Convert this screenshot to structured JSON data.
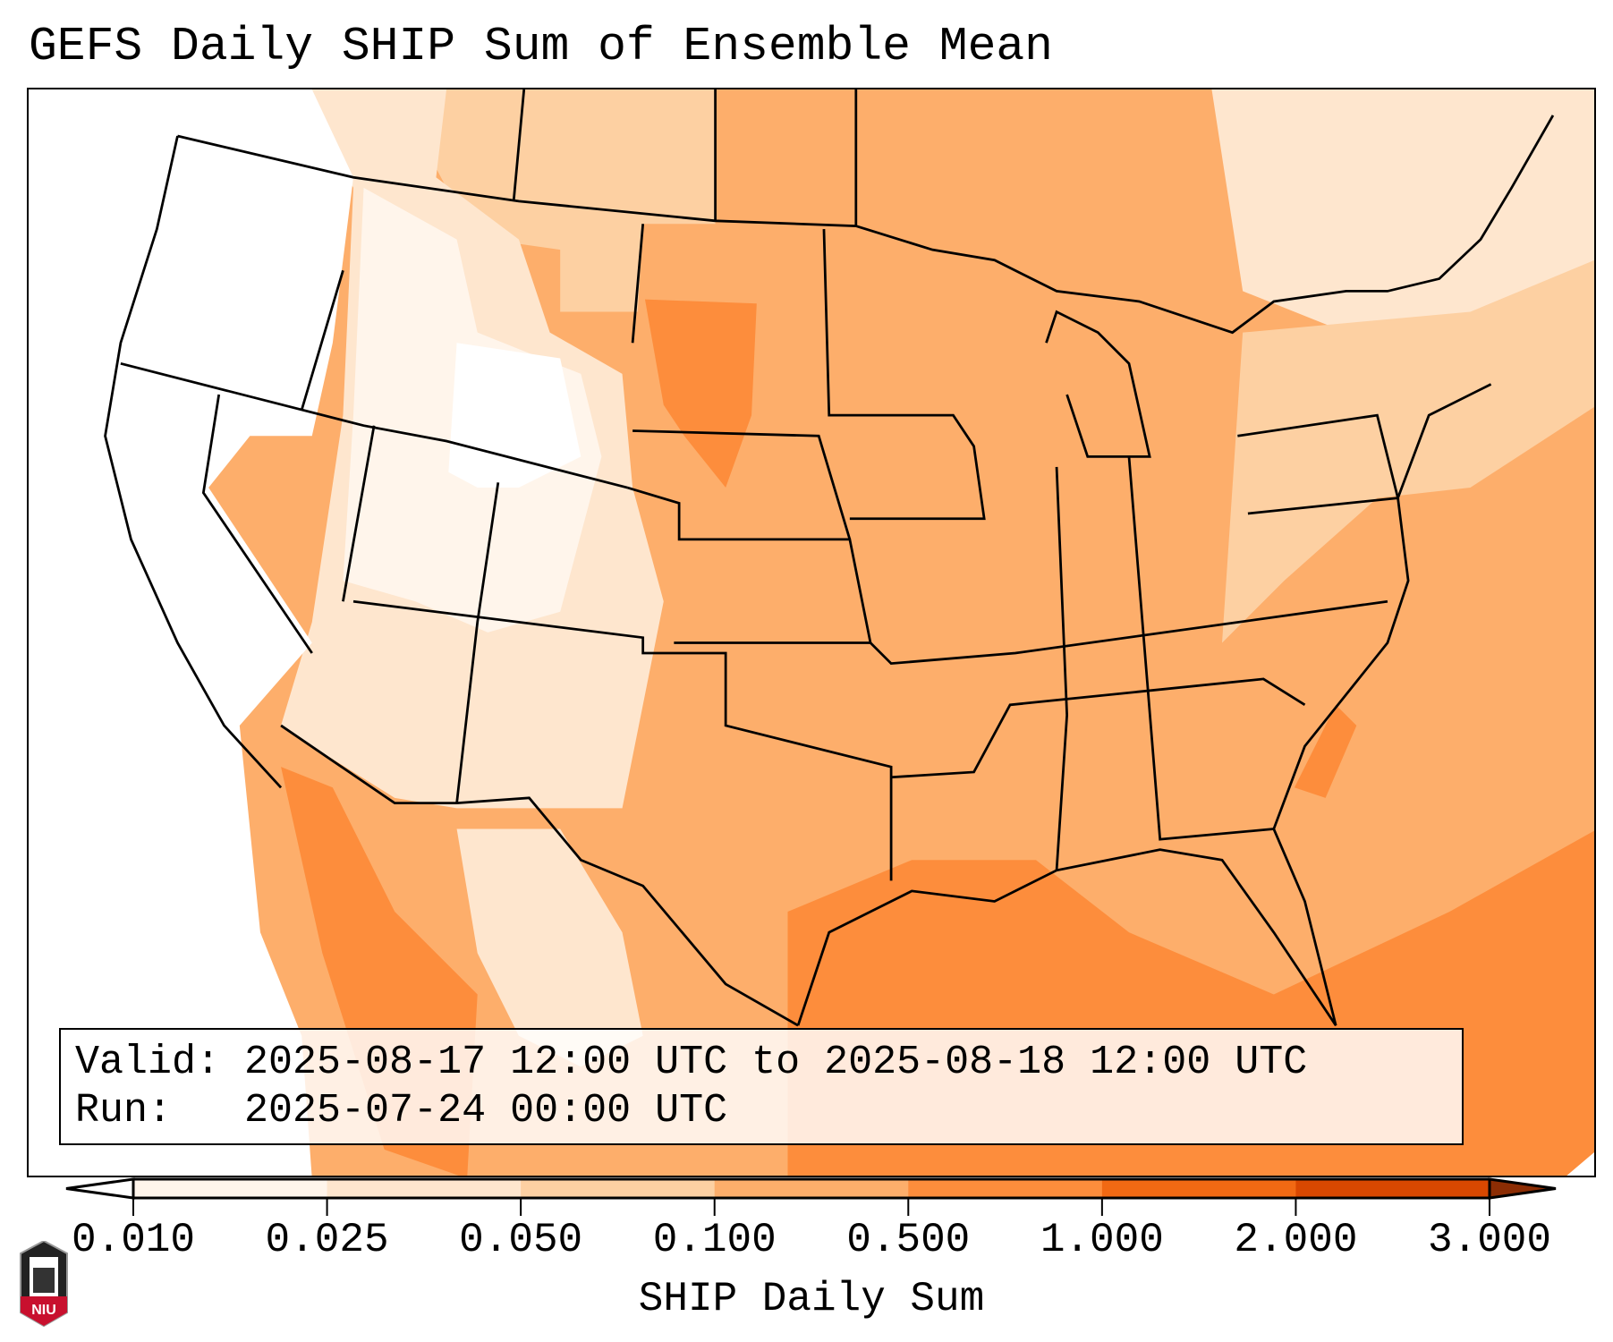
{
  "title": "GEFS Daily SHIP Sum of Ensemble Mean",
  "info": {
    "valid": "Valid: 2025-08-17 12:00 UTC to 2025-08-18 12:00 UTC",
    "run": "Run:   2025-07-24 00:00 UTC"
  },
  "colorbar": {
    "label": "SHIP Daily Sum",
    "ticks": [
      "0.010",
      "0.025",
      "0.050",
      "0.100",
      "0.500",
      "1.000",
      "2.000",
      "3.000"
    ],
    "colors": [
      "#fff5eb",
      "#fee6ce",
      "#fdd0a2",
      "#fdae6b",
      "#fd8d3c",
      "#f16913",
      "#d94801"
    ],
    "under_color": "#ffffff",
    "over_color": "#8c2d04"
  },
  "logo": {
    "text": "NIU"
  }
}
